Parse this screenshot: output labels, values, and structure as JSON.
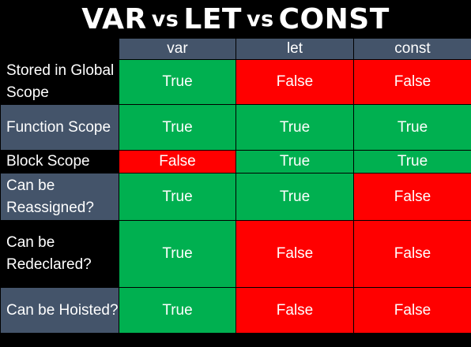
{
  "title": {
    "part1": "VAR",
    "sep1": "vs",
    "part2": "LET",
    "sep2": "vs",
    "part3": "CONST"
  },
  "columns": [
    "var",
    "let",
    "const"
  ],
  "rows": [
    {
      "label": "Stored in Global Scope",
      "values": [
        "True",
        "False",
        "False"
      ]
    },
    {
      "label": "Function Scope",
      "values": [
        "True",
        "True",
        "True"
      ]
    },
    {
      "label": "Block Scope",
      "values": [
        "False",
        "True",
        "True"
      ]
    },
    {
      "label": "Can be Reassigned?",
      "values": [
        "True",
        "True",
        "False"
      ]
    },
    {
      "label": "Can be Redeclared?",
      "values": [
        "True",
        "False",
        "False"
      ]
    },
    {
      "label": "Can be Hoisted?",
      "values": [
        "True",
        "False",
        "False"
      ]
    }
  ],
  "colors": {
    "true_cell": "#00b050",
    "false_cell": "#ff0000",
    "header_bg": "#44546a",
    "row_label_dark": "#000000",
    "row_label_slate": "#44546a"
  }
}
